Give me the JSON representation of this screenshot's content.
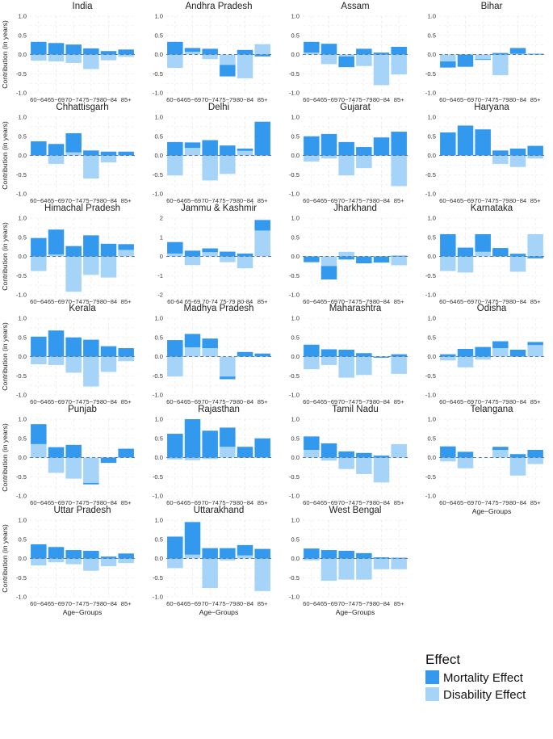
{
  "chart_data": {
    "type": "bar",
    "layout": "small-multiples, stacked bars per age group",
    "categories": [
      "60−64",
      "65−69",
      "70−74",
      "75−79",
      "80−84",
      "85+"
    ],
    "xlabel": "Age−Groups",
    "ylabel": "Contribution (in years)",
    "ylim": [
      -1.0,
      1.0
    ],
    "yticks": [
      1.0,
      0.5,
      0.0,
      -0.5,
      -1.0
    ],
    "grid": true,
    "legend": {
      "title": "Effect",
      "placement": "bottom-right",
      "entries": [
        {
          "name": "Mortality Effect",
          "color": "#3399ee"
        },
        {
          "name": "Disability Effect",
          "color": "#a6d4f8"
        }
      ]
    },
    "panels": [
      {
        "title": "India",
        "mortality": [
          0.33,
          0.3,
          0.26,
          0.16,
          0.09,
          0.13
        ],
        "disability": [
          -0.16,
          -0.18,
          -0.22,
          -0.38,
          -0.15,
          -0.06
        ]
      },
      {
        "title": "Andhra Pradesh",
        "mortality": [
          0.33,
          0.1,
          0.15,
          -0.3,
          0.12,
          -0.05
        ],
        "disability": [
          -0.35,
          0.07,
          -0.12,
          -0.27,
          -0.62,
          0.27
        ]
      },
      {
        "title": "Assam",
        "mortality": [
          0.28,
          0.28,
          -0.28,
          0.15,
          0.05,
          0.2
        ],
        "disability": [
          0.05,
          -0.25,
          -0.05,
          -0.3,
          -0.8,
          -0.52
        ]
      },
      {
        "title": "Bihar",
        "mortality": [
          -0.16,
          -0.32,
          -0.02,
          0.04,
          0.15,
          0.02
        ],
        "disability": [
          -0.18,
          0.0,
          -0.12,
          -0.54,
          0.02,
          0.0
        ]
      },
      {
        "title": "Chhattisgarh",
        "mortality": [
          0.37,
          0.3,
          0.5,
          0.13,
          0.1,
          0.1
        ],
        "disability": [
          0.0,
          -0.22,
          0.08,
          -0.6,
          -0.18,
          0.0
        ]
      },
      {
        "title": "Delhi",
        "mortality": [
          0.35,
          0.14,
          0.4,
          0.26,
          0.06,
          0.88
        ],
        "disability": [
          -0.52,
          0.2,
          -0.65,
          -0.48,
          0.12,
          0.0
        ]
      },
      {
        "title": "Gujarat",
        "mortality": [
          0.5,
          0.56,
          0.35,
          0.22,
          0.47,
          0.62
        ],
        "disability": [
          -0.16,
          -0.08,
          -0.52,
          -0.33,
          0.0,
          -0.8
        ]
      },
      {
        "title": "Haryana",
        "mortality": [
          0.6,
          0.78,
          0.68,
          0.13,
          0.18,
          0.25
        ],
        "disability": [
          0.0,
          0.0,
          0.0,
          -0.22,
          -0.3,
          -0.08
        ]
      },
      {
        "title": "Himachal Pradesh",
        "mortality": [
          0.48,
          0.65,
          0.27,
          0.55,
          0.33,
          0.15
        ],
        "disability": [
          -0.38,
          0.05,
          -0.92,
          -0.48,
          -0.55,
          0.17
        ]
      },
      {
        "title": "Jammu & Kashmir",
        "mortality": [
          0.6,
          0.3,
          0.2,
          0.25,
          0.15,
          0.55
        ],
        "disability": [
          0.15,
          -0.45,
          0.22,
          -0.3,
          -0.62,
          1.35
        ]
      },
      {
        "title": "Jharkhand",
        "mortality": [
          -0.15,
          -0.35,
          -0.08,
          -0.18,
          -0.16,
          0.02
        ],
        "disability": [
          0.0,
          -0.25,
          0.12,
          0.0,
          0.0,
          -0.23
        ]
      },
      {
        "title": "Karnataka",
        "mortality": [
          0.58,
          0.23,
          0.46,
          0.22,
          0.07,
          -0.05
        ],
        "disability": [
          -0.38,
          -0.42,
          0.12,
          0.0,
          -0.4,
          0.58
        ]
      },
      {
        "title": "Kerala",
        "mortality": [
          0.52,
          0.68,
          0.5,
          0.44,
          0.27,
          0.22
        ],
        "disability": [
          -0.2,
          -0.22,
          -0.42,
          -0.78,
          -0.4,
          -0.12
        ]
      },
      {
        "title": "Madhya Pradesh",
        "mortality": [
          0.43,
          0.35,
          0.25,
          -0.07,
          0.12,
          0.08
        ],
        "disability": [
          -0.52,
          0.24,
          0.22,
          -0.52,
          0.0,
          0.0
        ]
      },
      {
        "title": "Maharashtra",
        "mortality": [
          0.31,
          0.19,
          0.18,
          0.09,
          -0.03,
          0.06
        ],
        "disability": [
          -0.33,
          -0.22,
          -0.55,
          -0.48,
          0.0,
          -0.45
        ]
      },
      {
        "title": "Odisha",
        "mortality": [
          0.06,
          0.2,
          0.25,
          0.18,
          0.18,
          0.08
        ],
        "disability": [
          -0.1,
          -0.28,
          -0.08,
          0.22,
          0.0,
          0.3
        ]
      },
      {
        "title": "Punjab",
        "mortality": [
          0.52,
          0.27,
          0.33,
          -0.04,
          -0.14,
          0.23
        ],
        "disability": [
          0.35,
          -0.4,
          -0.55,
          -0.66,
          0.0,
          0.0
        ]
      },
      {
        "title": "Rajasthan",
        "mortality": [
          0.62,
          1.0,
          0.7,
          0.5,
          0.28,
          0.5
        ],
        "disability": [
          -0.05,
          -0.07,
          -0.04,
          0.28,
          0.0,
          0.0
        ]
      },
      {
        "title": "Tamil Nadu",
        "mortality": [
          0.35,
          0.37,
          0.16,
          0.12,
          0.05,
          0.0
        ],
        "disability": [
          0.2,
          -0.08,
          -0.3,
          -0.43,
          -0.65,
          0.35
        ]
      },
      {
        "title": "Telangana",
        "mortality": [
          0.29,
          0.15,
          0.0,
          0.08,
          0.09,
          0.2
        ],
        "disability": [
          -0.1,
          -0.28,
          0.0,
          0.2,
          -0.47,
          -0.17
        ]
      },
      {
        "title": "Uttar Pradesh",
        "mortality": [
          0.37,
          0.3,
          0.22,
          0.2,
          0.05,
          0.13
        ],
        "disability": [
          -0.18,
          -0.1,
          -0.15,
          -0.32,
          -0.2,
          -0.12
        ]
      },
      {
        "title": "Uttarakhand",
        "mortality": [
          0.57,
          0.85,
          0.27,
          0.27,
          0.27,
          0.25
        ],
        "disability": [
          -0.25,
          0.1,
          -0.77,
          -0.05,
          0.08,
          -0.85
        ]
      },
      {
        "title": "West Bengal",
        "mortality": [
          0.26,
          0.22,
          0.2,
          0.14,
          0.03,
          0.02
        ],
        "disability": [
          -0.05,
          -0.58,
          -0.55,
          -0.55,
          -0.28,
          -0.28
        ]
      }
    ],
    "jk_panel_ylim": [
      -2,
      2
    ],
    "jk_panel_yticks": [
      2,
      1,
      0,
      -1,
      -2
    ],
    "jk_panel_categories": [
      "60-64",
      "65-69",
      "70-74",
      "75-79",
      "80-84",
      "85+"
    ]
  }
}
